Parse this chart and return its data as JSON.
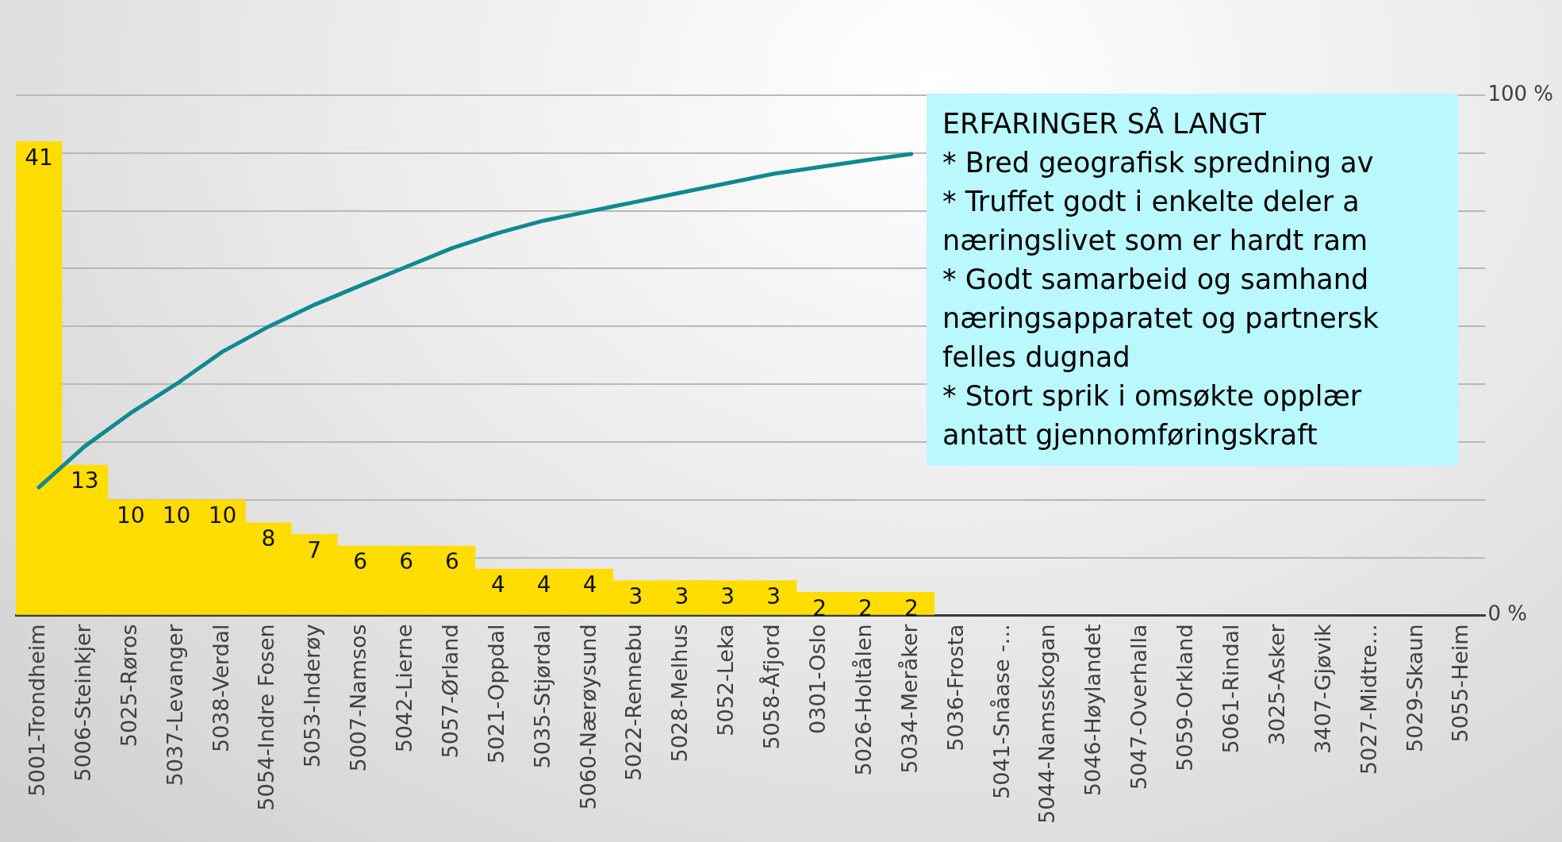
{
  "chart_data": {
    "type": "bar",
    "categories": [
      "5001-Trondheim",
      "5006-Steinkjer",
      "5025-Røros",
      "5037-Levanger",
      "5038-Verdal",
      "5054-Indre Fosen",
      "5053-Inderøy",
      "5007-Namsos",
      "5042-Lierne",
      "5057-Ørland",
      "5021-Oppdal",
      "5035-Stjørdal",
      "5060-Nærøysund",
      "5022-Rennebu",
      "5028-Melhus",
      "5052-Leka",
      "5058-Åfjord",
      "0301-Oslo",
      "5026-Holtålen",
      "5034-Meråker",
      "5036-Frosta",
      "5041-Snåase -...",
      "5044-Namsskogan",
      "5046-Høylandet",
      "5047-Overhalla",
      "5059-Orkland",
      "5061-Rindal",
      "3025-Asker",
      "3407-Gjøvik",
      "5027-Midtre...",
      "5029-Skaun",
      "5055-Heim"
    ],
    "series": [
      {
        "color": "#ffdd00",
        "values": [
          41,
          13,
          10,
          10,
          10,
          8,
          7,
          6,
          6,
          6,
          4,
          4,
          4,
          3,
          3,
          3,
          3,
          2,
          2,
          2,
          null,
          null,
          null,
          null,
          null,
          null,
          null,
          null,
          null,
          null,
          null,
          null
        ],
        "value_labels": [
          "41",
          "13",
          "10",
          "10",
          "10",
          "8",
          "7",
          "6",
          "6",
          "6",
          "4",
          "4",
          "4",
          "3",
          "3",
          "3",
          "3",
          "2",
          "2",
          "2",
          null,
          null,
          null,
          null,
          null,
          null,
          null,
          null,
          null,
          null,
          null,
          null
        ]
      },
      {
        "type": "line",
        "axis": "y2",
        "color": "#0e8a8f",
        "values": [
          24.6,
          32.5,
          38.9,
          44.5,
          50.7,
          55.5,
          59.7,
          63.4,
          67.0,
          70.6,
          73.5,
          75.9,
          77.7,
          79.5,
          81.3,
          83.1,
          84.9,
          86.2,
          87.5,
          88.7,
          null,
          null,
          null,
          null,
          null,
          null,
          null,
          null,
          null,
          null,
          null,
          null
        ]
      }
    ],
    "ylim": [
      0,
      45
    ],
    "yticks": [
      {
        "value": 0,
        "label": null
      },
      {
        "value": 5,
        "label": null
      },
      {
        "value": 10,
        "label": null
      },
      {
        "value": 15,
        "label": null
      },
      {
        "value": 20,
        "label": null
      },
      {
        "value": 25,
        "label": null
      },
      {
        "value": 30,
        "label": null
      },
      {
        "value": 35,
        "label": null
      },
      {
        "value": 40,
        "label": null
      },
      {
        "value": 45,
        "label": null
      }
    ],
    "y2lim": [
      0,
      100
    ],
    "y2ticks": [
      {
        "value": 0,
        "label": "0 %"
      },
      {
        "value": 100,
        "label": "100 %"
      }
    ],
    "grid": "y",
    "legend": false,
    "marker": "none",
    "annotations": [
      "ERFARINGER SÅ LANGT",
      "* Bred geografisk spredning av",
      "* Truffet godt i enkelte deler a",
      "næringslivet som er hardt ram",
      "* Godt samarbeid og samhand",
      "næringsapparatet og partnersk",
      "felles dugnad",
      "* Stort sprik i omsøkte opplær",
      "antatt gjennomføringskraft"
    ]
  }
}
